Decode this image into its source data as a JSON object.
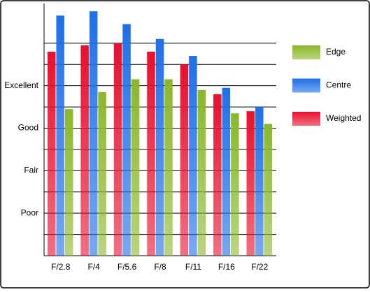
{
  "chart_data": {
    "type": "bar",
    "categories": [
      "F/2.8",
      "F/4",
      "F/5.6",
      "F/8",
      "F/11",
      "F/16",
      "F/22"
    ],
    "series": [
      {
        "name": "Weighted",
        "color": "#e8102e",
        "values": [
          9.6,
          9.9,
          10.0,
          9.6,
          9.0,
          7.6,
          6.8
        ]
      },
      {
        "name": "Centre",
        "color": "#1f6fe8",
        "values": [
          11.3,
          11.5,
          10.9,
          10.2,
          9.4,
          7.9,
          7.0
        ]
      },
      {
        "name": "Edge",
        "color": "#8ab82a",
        "values": [
          6.9,
          7.7,
          8.3,
          8.3,
          7.8,
          6.7,
          6.2
        ]
      }
    ],
    "ylim": [
      0,
      12
    ],
    "yticks": [
      {
        "value": 2,
        "label": "Poor"
      },
      {
        "value": 4,
        "label": "Fair"
      },
      {
        "value": 6,
        "label": "Good"
      },
      {
        "value": 8,
        "label": "Excellent"
      }
    ],
    "minor_yticks": [
      1,
      3,
      5,
      7,
      9,
      10
    ],
    "grid": true,
    "legend": "right"
  }
}
